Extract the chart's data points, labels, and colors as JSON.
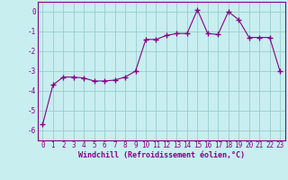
{
  "x": [
    0,
    1,
    2,
    3,
    4,
    5,
    6,
    7,
    8,
    9,
    10,
    11,
    12,
    13,
    14,
    15,
    16,
    17,
    18,
    19,
    20,
    21,
    22,
    23
  ],
  "y": [
    -5.7,
    -3.7,
    -3.3,
    -3.3,
    -3.35,
    -3.5,
    -3.5,
    -3.45,
    -3.3,
    -3.0,
    -1.4,
    -1.4,
    -1.2,
    -1.1,
    -1.1,
    0.1,
    -1.1,
    -1.15,
    0.0,
    -0.4,
    -1.3,
    -1.3,
    -1.3,
    -3.0
  ],
  "line_color": "#880088",
  "marker": "+",
  "marker_size": 4,
  "bg_color": "#c8eef0",
  "grid_color": "#99cccc",
  "xlabel": "Windchill (Refroidissement éolien,°C)",
  "xlabel_fontsize": 6.0,
  "tick_fontsize": 5.5,
  "ylim": [
    -6.5,
    0.5
  ],
  "yticks": [
    0,
    -1,
    -2,
    -3,
    -4,
    -5,
    -6
  ],
  "title": ""
}
